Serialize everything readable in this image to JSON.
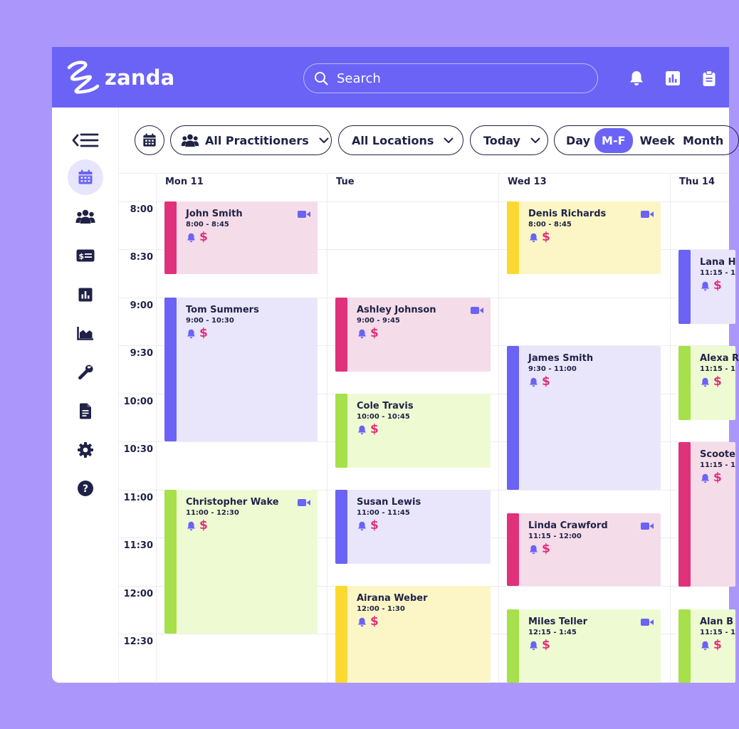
{
  "app": {
    "name": "zanda"
  },
  "header": {
    "search_placeholder": "Search"
  },
  "toolbar": {
    "practitioners": "All Practitioners",
    "locations": "All Locations",
    "date": "Today",
    "views": [
      "Day",
      "M-F",
      "Week",
      "Month"
    ],
    "selected_view": "M-F"
  },
  "calendar": {
    "columns": [
      "Mon 11",
      "Tue",
      "Wed 13",
      "Thu 14"
    ],
    "times": [
      "8:00",
      "8:30",
      "9:00",
      "9:30",
      "10:00",
      "10:30",
      "11:00",
      "11:30",
      "12:00",
      "12:30"
    ],
    "appointments": {
      "a1": {
        "name": "John Smith",
        "time": "8:00 - 8:45"
      },
      "a2": {
        "name": "Tom Summers",
        "time": "9:00 - 10:30"
      },
      "a3": {
        "name": "Christopher Wake",
        "time": "11:00 - 12:30"
      },
      "a4": {
        "name": "Ashley Johnson",
        "time": "9:00 - 9:45"
      },
      "a5": {
        "name": "Cole Travis",
        "time": "10:00 - 10:45"
      },
      "a6": {
        "name": "Susan Lewis",
        "time": "11:00 - 11:45"
      },
      "a7": {
        "name": "Airana Weber",
        "time": "12:00 - 1:30"
      },
      "a8": {
        "name": "Denis Richards",
        "time": "8:00 - 8:45"
      },
      "a9": {
        "name": "James Smith",
        "time": "9:30 - 11:00"
      },
      "a10": {
        "name": "Linda Crawford",
        "time": "11:15 - 12:00"
      },
      "a11": {
        "name": "Miles Teller",
        "time": "12:15 - 1:45"
      },
      "a12": {
        "name": "Lana H",
        "time": "11:15 - 1"
      },
      "a13": {
        "name": "Alexa R",
        "time": "11:15 - 1"
      },
      "a14": {
        "name": "Scoote",
        "time": "11:15 - 1"
      },
      "a15": {
        "name": "Alan B",
        "time": "11:15 - 1"
      }
    }
  },
  "colors": {
    "brand": "#6a63f5",
    "pink": "#e0317b",
    "lime": "#a6e04a",
    "yellow": "#fcd931",
    "purple": "#6a63f5",
    "pink_bg": "#f5dce9",
    "lime_bg": "#eefbd2",
    "yellow_bg": "#fcf6c6",
    "purple_bg": "#e9e6fc"
  }
}
